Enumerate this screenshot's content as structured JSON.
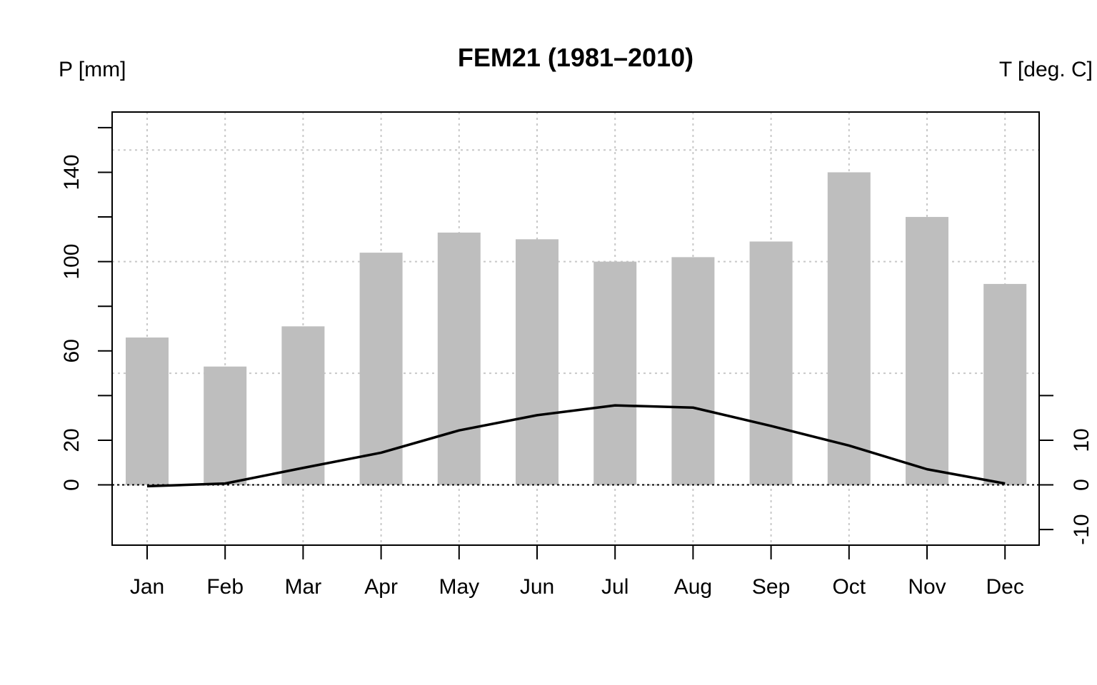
{
  "chart_data": {
    "type": "bar",
    "title": "FEM21 (1981–2010)",
    "ylabel_left": "P [mm]",
    "ylabel_right": "T [deg. C]",
    "categories": [
      "Jan",
      "Feb",
      "Mar",
      "Apr",
      "May",
      "Jun",
      "Jul",
      "Aug",
      "Sep",
      "Oct",
      "Nov",
      "Dec"
    ],
    "left_axis": {
      "ticks": [
        0,
        20,
        60,
        100,
        140
      ],
      "minor_ticks": [
        40,
        80,
        120,
        160
      ],
      "ylim": [
        -27,
        167
      ]
    },
    "right_axis": {
      "ticks": [
        -10,
        0,
        10
      ],
      "minor_ticks": [
        20
      ],
      "ylim": [
        -13.5,
        83.5
      ]
    },
    "grid": true,
    "series": [
      {
        "type": "bar",
        "axis": "left",
        "values": [
          66,
          53,
          71,
          104,
          113,
          110,
          100,
          102,
          109,
          140,
          120,
          90
        ]
      },
      {
        "type": "line",
        "axis": "right",
        "values": [
          -0.3,
          0.3,
          3.8,
          7.2,
          12.2,
          15.6,
          17.8,
          17.3,
          13.2,
          8.8,
          3.5,
          0.3
        ]
      }
    ]
  }
}
